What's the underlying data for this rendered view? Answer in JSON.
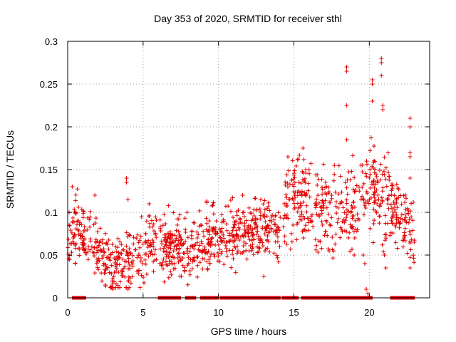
{
  "chart_data": {
    "type": "scatter",
    "title": "Day 353 of 2020, SRMTID for receiver sthl",
    "xlabel": "GPS time / hours",
    "ylabel": "SRMTID / TECUs",
    "xlim": [
      0,
      24
    ],
    "ylim": [
      0,
      0.3
    ],
    "x_ticks": [
      "0",
      "5",
      "10",
      "15",
      "20"
    ],
    "x_tick_values": [
      0,
      5,
      10,
      15,
      20
    ],
    "y_ticks": [
      "0",
      "0.05",
      "0.1",
      "0.15",
      "0.2",
      "0.25",
      "0.3"
    ],
    "y_tick_values": [
      0,
      0.05,
      0.1,
      0.15,
      0.2,
      0.25,
      0.3
    ],
    "grid": true,
    "marker": "+",
    "color": "#e00000",
    "series": [
      {
        "name": "SRMTID",
        "trend": [
          [
            0.0,
            0.075
          ],
          [
            0.5,
            0.085
          ],
          [
            1.0,
            0.075
          ],
          [
            1.5,
            0.07
          ],
          [
            2.0,
            0.06
          ],
          [
            2.5,
            0.04
          ],
          [
            3.0,
            0.035
          ],
          [
            3.5,
            0.045
          ],
          [
            4.0,
            0.045
          ],
          [
            4.5,
            0.05
          ],
          [
            5.0,
            0.055
          ],
          [
            5.5,
            0.07
          ],
          [
            6.0,
            0.065
          ],
          [
            6.5,
            0.06
          ],
          [
            7.0,
            0.06
          ],
          [
            7.5,
            0.058
          ],
          [
            8.0,
            0.058
          ],
          [
            8.5,
            0.062
          ],
          [
            9.0,
            0.065
          ],
          [
            9.5,
            0.07
          ],
          [
            10.0,
            0.068
          ],
          [
            10.5,
            0.07
          ],
          [
            11.0,
            0.075
          ],
          [
            11.5,
            0.08
          ],
          [
            12.0,
            0.075
          ],
          [
            12.5,
            0.08
          ],
          [
            13.0,
            0.08
          ],
          [
            13.5,
            0.08
          ],
          [
            14.0,
            0.08
          ],
          [
            14.5,
            0.1
          ],
          [
            15.0,
            0.125
          ],
          [
            15.5,
            0.115
          ],
          [
            16.0,
            0.11
          ],
          [
            16.5,
            0.11
          ],
          [
            17.0,
            0.1
          ],
          [
            17.5,
            0.1
          ],
          [
            18.0,
            0.1
          ],
          [
            18.5,
            0.11
          ],
          [
            19.0,
            0.11
          ],
          [
            19.5,
            0.12
          ],
          [
            20.0,
            0.13
          ],
          [
            20.5,
            0.12
          ],
          [
            21.0,
            0.11
          ],
          [
            21.5,
            0.1
          ],
          [
            22.0,
            0.09
          ],
          [
            22.5,
            0.08
          ],
          [
            23.0,
            0.075
          ]
        ],
        "extreme_points": [
          [
            0.3,
            0.13
          ],
          [
            0.5,
            0.04
          ],
          [
            1.8,
            0.12
          ],
          [
            2.5,
            0.015
          ],
          [
            3.0,
            0.01
          ],
          [
            3.9,
            0.14
          ],
          [
            3.9,
            0.135
          ],
          [
            4.0,
            0.115
          ],
          [
            4.0,
            0.01
          ],
          [
            5.4,
            0.11
          ],
          [
            11.6,
            0.12
          ],
          [
            12.8,
            0.115
          ],
          [
            13.0,
            0.025
          ],
          [
            14.6,
            0.165
          ],
          [
            15.6,
            0.175
          ],
          [
            16.0,
            0.15
          ],
          [
            18.5,
            0.27
          ],
          [
            18.5,
            0.265
          ],
          [
            18.5,
            0.225
          ],
          [
            18.5,
            0.185
          ],
          [
            19.0,
            0.05
          ],
          [
            19.6,
            0.05
          ],
          [
            19.7,
            0.04
          ],
          [
            19.8,
            0.01
          ],
          [
            19.9,
            0.005
          ],
          [
            20.2,
            0.255
          ],
          [
            20.2,
            0.25
          ],
          [
            20.2,
            0.23
          ],
          [
            20.8,
            0.28
          ],
          [
            20.8,
            0.275
          ],
          [
            20.8,
            0.26
          ],
          [
            20.9,
            0.225
          ],
          [
            20.9,
            0.22
          ],
          [
            21.0,
            0.05
          ],
          [
            21.1,
            0.035
          ],
          [
            22.7,
            0.21
          ],
          [
            22.7,
            0.2
          ],
          [
            22.7,
            0.17
          ],
          [
            22.7,
            0.165
          ],
          [
            22.7,
            0.14
          ],
          [
            22.7,
            0.035
          ]
        ],
        "gaps": [
          [
            5.9,
            6.1
          ],
          [
            14.1,
            14.3
          ]
        ]
      },
      {
        "name": "zero-value samples",
        "y": 0,
        "x_ranges": [
          [
            0.4,
            1.1
          ],
          [
            6.1,
            7.4
          ],
          [
            7.9,
            8.4
          ],
          [
            8.9,
            9.9
          ],
          [
            10.2,
            14.0
          ],
          [
            14.3,
            15.2
          ],
          [
            15.6,
            19.0
          ],
          [
            19.2,
            20.1
          ],
          [
            21.5,
            22.1
          ],
          [
            22.3,
            22.9
          ]
        ]
      }
    ]
  }
}
